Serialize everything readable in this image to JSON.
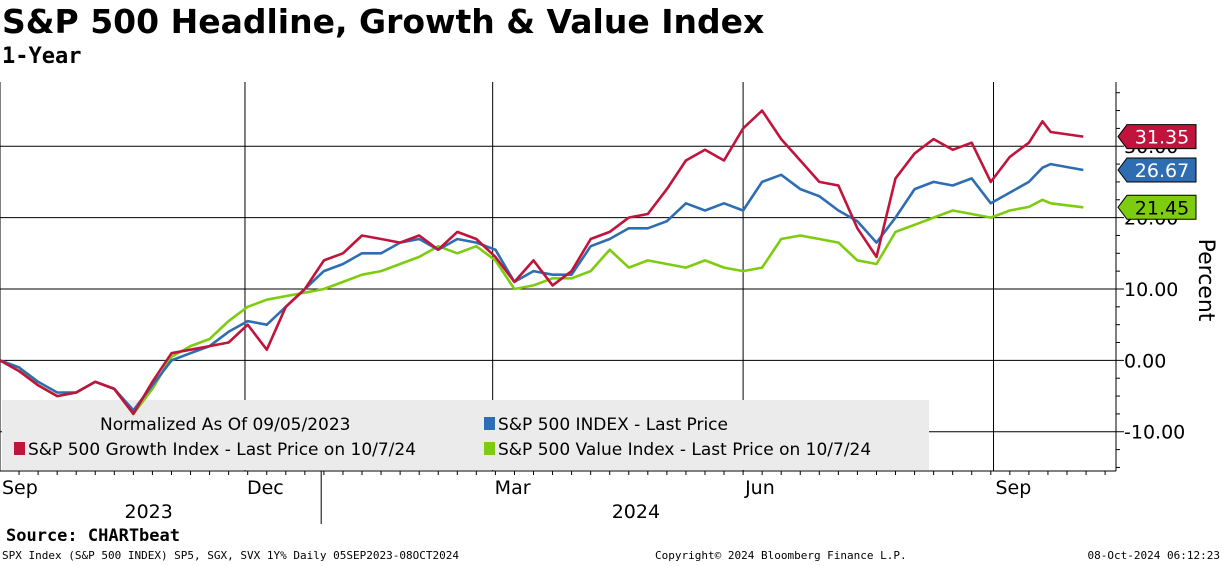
{
  "header": {
    "title": "S&P 500 Headline, Growth & Value Index",
    "subtitle": "1-Year"
  },
  "source": "Source: CHARTbeat",
  "footer": {
    "left": "SPX Index (S&P 500 INDEX) SP5, SGX, SVX 1Y% Daily 05SEP2023-08OCT2024",
    "center": "Copyright© 2024 Bloomberg Finance L.P.",
    "right": "08-Oct-2024 06:12:23"
  },
  "colors": {
    "growth": "#c0143c",
    "headline": "#2f6db3",
    "value": "#7dcc10",
    "legend_bg": "#ebebeb"
  },
  "chart_data": {
    "type": "line",
    "title": "S&P 500 Headline, Growth & Value Index",
    "subtitle": "1-Year",
    "xlabel": "",
    "ylabel": "Percent",
    "ylim": [
      -15.5,
      39
    ],
    "yticks": [
      -10,
      0,
      10,
      20,
      30
    ],
    "ytick_labels": [
      "-10.00",
      "0.00",
      "10.00",
      "20.00",
      "30.00"
    ],
    "x_start": "2023-09-05",
    "x_end": "2024-10-07",
    "month_labels": [
      {
        "label": "Sep",
        "day": 0
      },
      {
        "label": "Dec",
        "day": 90
      },
      {
        "label": "Mar",
        "day": 181
      },
      {
        "label": "Jun",
        "day": 273
      },
      {
        "label": "Sep",
        "day": 365
      }
    ],
    "year_labels": [
      {
        "label": "2023",
        "day": 45
      },
      {
        "label": "2024",
        "day": 224
      }
    ],
    "year_boundary_day": 118,
    "legend": {
      "note": "Normalized As Of 09/05/2023",
      "location": "bottom-left"
    },
    "series": [
      {
        "key": "growth",
        "name": "S&P 500 Growth Index - Last Price on 10/7/24",
        "last_value": 31.35,
        "last_label": "31.35",
        "x": [
          0,
          7,
          14,
          21,
          28,
          35,
          42,
          49,
          56,
          63,
          70,
          77,
          84,
          91,
          98,
          105,
          112,
          119,
          126,
          133,
          140,
          147,
          154,
          161,
          168,
          175,
          182,
          189,
          196,
          203,
          210,
          217,
          224,
          231,
          238,
          245,
          252,
          259,
          266,
          273,
          280,
          287,
          294,
          301,
          308,
          315,
          322,
          329,
          336,
          343,
          350,
          357,
          364,
          371,
          378,
          383,
          386,
          398
        ],
        "values": [
          0.0,
          -1.5,
          -3.5,
          -5.0,
          -4.5,
          -3.0,
          -4.0,
          -7.5,
          -3.0,
          1.0,
          1.5,
          2.0,
          2.5,
          5.0,
          1.5,
          7.5,
          10.0,
          14.0,
          15.0,
          17.5,
          17.0,
          16.5,
          17.5,
          15.5,
          18.0,
          17.0,
          14.5,
          11.0,
          14.0,
          10.5,
          12.5,
          17.0,
          18.0,
          20.0,
          20.5,
          24.0,
          28.0,
          29.5,
          28.0,
          32.5,
          35.0,
          31.0,
          28.0,
          25.0,
          24.5,
          18.5,
          14.5,
          25.5,
          29.0,
          31.0,
          29.5,
          30.5,
          25.0,
          28.5,
          30.5,
          33.5,
          32.0,
          31.35
        ]
      },
      {
        "key": "headline",
        "name": "S&P 500 INDEX - Last Price",
        "last_value": 26.67,
        "last_label": "26.67",
        "x": [
          0,
          7,
          14,
          21,
          28,
          35,
          42,
          49,
          56,
          63,
          70,
          77,
          84,
          91,
          98,
          105,
          112,
          119,
          126,
          133,
          140,
          147,
          154,
          161,
          168,
          175,
          182,
          189,
          196,
          203,
          210,
          217,
          224,
          231,
          238,
          245,
          252,
          259,
          266,
          273,
          280,
          287,
          294,
          301,
          308,
          315,
          322,
          329,
          336,
          343,
          350,
          357,
          364,
          371,
          378,
          383,
          386,
          398
        ],
        "values": [
          0.0,
          -1.0,
          -3.0,
          -4.5,
          -4.5,
          -3.0,
          -4.0,
          -7.0,
          -3.5,
          0.0,
          1.0,
          2.0,
          4.0,
          5.5,
          5.0,
          7.5,
          10.0,
          12.5,
          13.5,
          15.0,
          15.0,
          16.5,
          17.0,
          15.5,
          17.0,
          16.5,
          15.5,
          11.0,
          12.5,
          12.0,
          12.0,
          16.0,
          17.0,
          18.5,
          18.5,
          19.5,
          22.0,
          21.0,
          22.0,
          21.0,
          25.0,
          26.0,
          24.0,
          23.0,
          21.0,
          19.5,
          16.5,
          20.0,
          24.0,
          25.0,
          24.5,
          25.5,
          22.0,
          23.5,
          25.0,
          27.0,
          27.5,
          26.67
        ]
      },
      {
        "key": "value",
        "name": "S&P 500 Value Index - Last Price on 10/7/24",
        "last_value": 21.45,
        "last_label": "21.45",
        "x": [
          0,
          7,
          14,
          21,
          28,
          35,
          42,
          49,
          56,
          63,
          70,
          77,
          84,
          91,
          98,
          105,
          112,
          119,
          126,
          133,
          140,
          147,
          154,
          161,
          168,
          175,
          182,
          189,
          196,
          203,
          210,
          217,
          224,
          231,
          238,
          245,
          252,
          259,
          266,
          273,
          280,
          287,
          294,
          301,
          308,
          315,
          322,
          329,
          336,
          343,
          350,
          357,
          364,
          371,
          378,
          383,
          386,
          398
        ],
        "values": [
          0.0,
          -1.0,
          -3.5,
          -5.0,
          -4.5,
          -3.0,
          -4.0,
          -7.5,
          -4.0,
          0.5,
          2.0,
          3.0,
          5.5,
          7.5,
          8.5,
          9.0,
          9.5,
          10.0,
          11.0,
          12.0,
          12.5,
          13.5,
          14.5,
          16.0,
          15.0,
          16.0,
          14.0,
          10.0,
          10.5,
          11.5,
          11.5,
          12.5,
          15.5,
          13.0,
          14.0,
          13.5,
          13.0,
          14.0,
          13.0,
          12.5,
          13.0,
          17.0,
          17.5,
          17.0,
          16.5,
          14.0,
          13.5,
          18.0,
          19.0,
          20.0,
          21.0,
          20.5,
          20.0,
          21.0,
          21.5,
          22.5,
          22.0,
          21.45
        ]
      }
    ]
  }
}
